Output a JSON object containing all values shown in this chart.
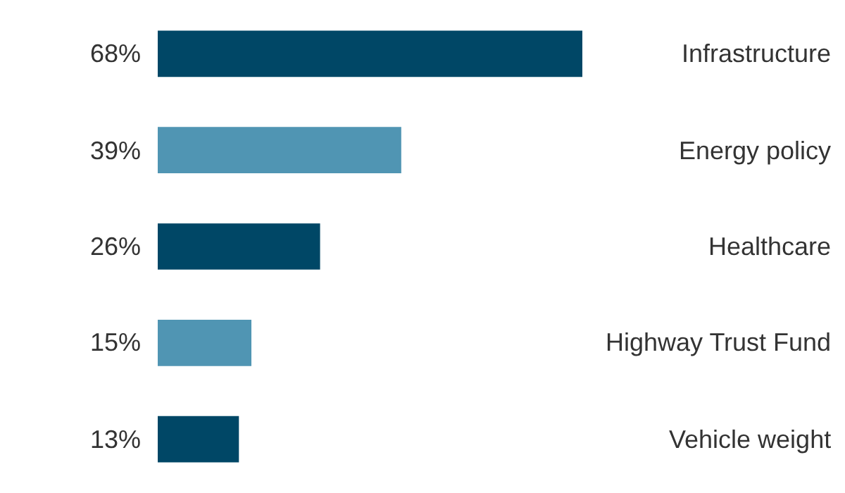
{
  "chart_data": {
    "type": "bar",
    "orientation": "horizontal",
    "categories": [
      "Infrastructure",
      "Energy policy",
      "Healthcare",
      "Highway Trust Fund",
      "Vehicle weight"
    ],
    "values": [
      68,
      39,
      26,
      15,
      13
    ],
    "colors": [
      "#004766",
      "#5095b3",
      "#004766",
      "#5095b3",
      "#004766"
    ],
    "value_labels": [
      "68%",
      "39%",
      "26%",
      "15%",
      "13%"
    ]
  }
}
